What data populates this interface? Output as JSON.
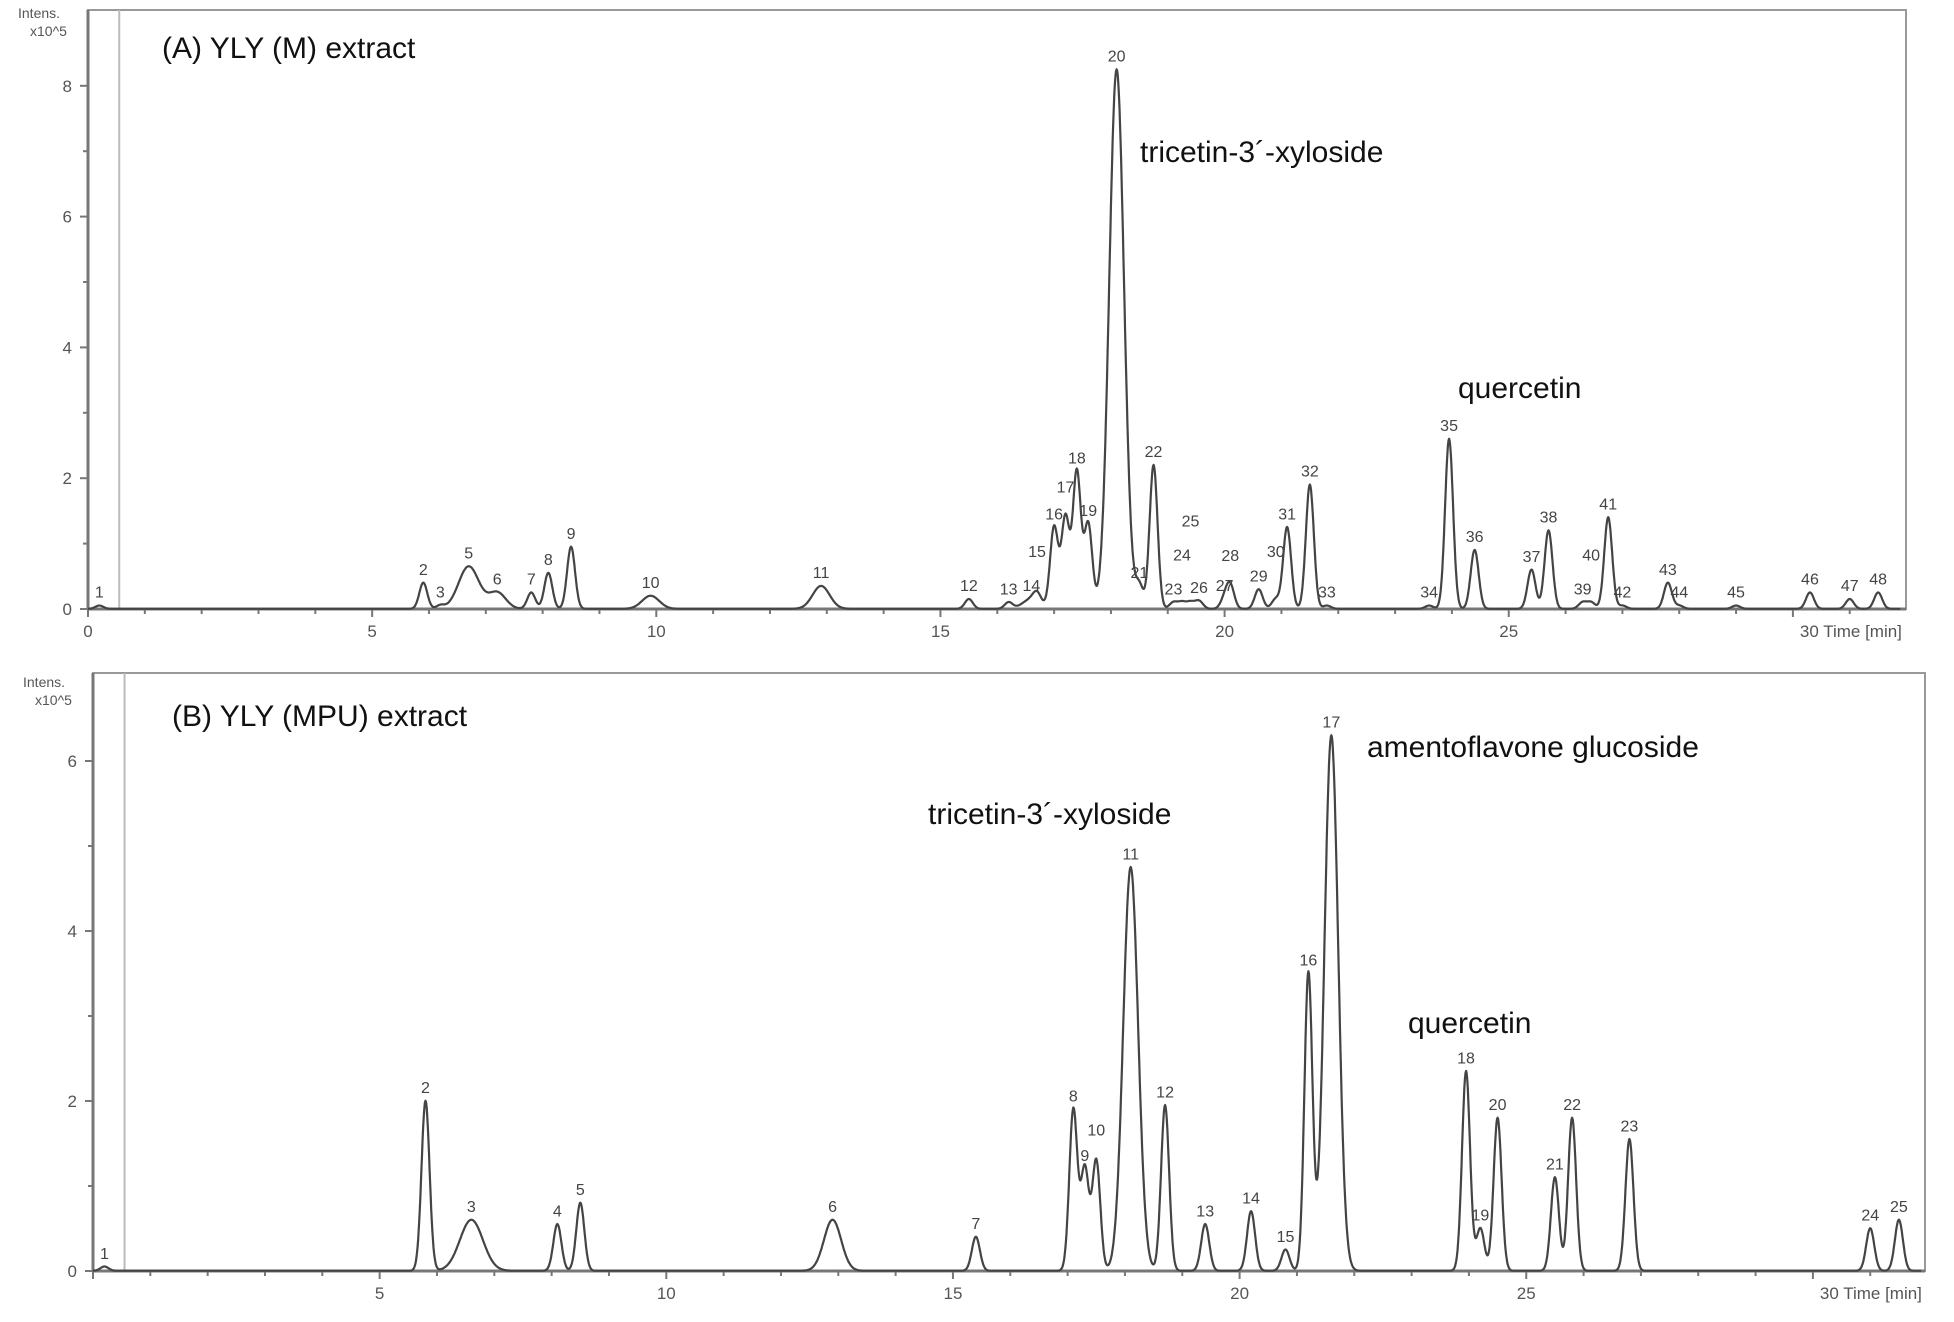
{
  "chart_data": [
    {
      "type": "line",
      "title": "(A) YLY (M) extract",
      "ylabel": "Intens.",
      "yunit": "x10^5",
      "xlabel": "Time [min]",
      "xlim": [
        0,
        32
      ],
      "ylim": [
        0,
        8.7
      ],
      "xticks": [
        0,
        5,
        10,
        15,
        20,
        25,
        30
      ],
      "xtick_labels": [
        "0",
        "5",
        "10",
        "15",
        "20",
        "25",
        "30 Time [min]"
      ],
      "yticks": [
        0,
        2,
        4,
        6,
        8
      ],
      "annotations": [
        {
          "text": "(A) YLY (M) extract",
          "role": "panel-title"
        },
        {
          "text": "tricetin-3´-xyloside",
          "peak": "20"
        },
        {
          "text": "quercetin",
          "peak": "35"
        }
      ],
      "peaks": [
        {
          "label": "1",
          "t": 0.2,
          "h": 0.05
        },
        {
          "label": "2",
          "t": 5.9,
          "h": 0.4
        },
        {
          "label": "3",
          "t": 6.2,
          "h": 0.05
        },
        {
          "label": "5",
          "t": 6.7,
          "h": 0.65,
          "w": 0.18
        },
        {
          "label": "6",
          "t": 7.2,
          "h": 0.25,
          "w": 0.15
        },
        {
          "label": "7",
          "t": 7.8,
          "h": 0.25
        },
        {
          "label": "8",
          "t": 8.1,
          "h": 0.55
        },
        {
          "label": "9",
          "t": 8.5,
          "h": 0.95
        },
        {
          "label": "10",
          "t": 9.9,
          "h": 0.2,
          "w": 0.15
        },
        {
          "label": "11",
          "t": 12.9,
          "h": 0.35,
          "w": 0.15
        },
        {
          "label": "12",
          "t": 15.5,
          "h": 0.15
        },
        {
          "label": "13",
          "t": 16.2,
          "h": 0.1
        },
        {
          "label": "14",
          "t": 16.6,
          "h": 0.15,
          "w": 0.15
        },
        {
          "label": "15",
          "t": 16.7,
          "h": 0.15
        },
        {
          "label": "16",
          "t": 17.0,
          "h": 1.25
        },
        {
          "label": "17",
          "t": 17.2,
          "h": 1.4
        },
        {
          "label": "18",
          "t": 17.4,
          "h": 2.1
        },
        {
          "label": "19",
          "t": 17.6,
          "h": 1.3
        },
        {
          "label": "20",
          "t": 18.1,
          "h": 8.25,
          "w": 0.13
        },
        {
          "label": "21",
          "t": 18.5,
          "h": 0.35
        },
        {
          "label": "22",
          "t": 18.75,
          "h": 2.2
        },
        {
          "label": "23",
          "t": 19.1,
          "h": 0.1
        },
        {
          "label": "24",
          "t": 19.25,
          "h": 0.1
        },
        {
          "label": "25",
          "t": 19.4,
          "h": 0.1
        },
        {
          "label": "26",
          "t": 19.55,
          "h": 0.12
        },
        {
          "label": "27",
          "t": 20.0,
          "h": 0.15
        },
        {
          "label": "28",
          "t": 20.1,
          "h": 0.35
        },
        {
          "label": "29",
          "t": 20.6,
          "h": 0.3
        },
        {
          "label": "30",
          "t": 20.9,
          "h": 0.15
        },
        {
          "label": "31",
          "t": 21.1,
          "h": 1.25
        },
        {
          "label": "32",
          "t": 21.5,
          "h": 1.9
        },
        {
          "label": "33",
          "t": 21.8,
          "h": 0.05
        },
        {
          "label": "34",
          "t": 23.6,
          "h": 0.05
        },
        {
          "label": "35",
          "t": 23.95,
          "h": 2.6
        },
        {
          "label": "36",
          "t": 24.4,
          "h": 0.9
        },
        {
          "label": "37",
          "t": 25.4,
          "h": 0.6
        },
        {
          "label": "38",
          "t": 25.7,
          "h": 1.2
        },
        {
          "label": "39",
          "t": 26.3,
          "h": 0.1
        },
        {
          "label": "40",
          "t": 26.45,
          "h": 0.1
        },
        {
          "label": "41",
          "t": 26.75,
          "h": 1.4
        },
        {
          "label": "42",
          "t": 27.0,
          "h": 0.05
        },
        {
          "label": "43",
          "t": 27.8,
          "h": 0.4
        },
        {
          "label": "44",
          "t": 28.0,
          "h": 0.05
        },
        {
          "label": "45",
          "t": 29.0,
          "h": 0.05
        },
        {
          "label": "46",
          "t": 30.3,
          "h": 0.25
        },
        {
          "label": "47",
          "t": 31.0,
          "h": 0.15
        },
        {
          "label": "48",
          "t": 31.5,
          "h": 0.25
        }
      ]
    },
    {
      "type": "line",
      "title": "(B) YLY (MPU) extract",
      "ylabel": "Intens.",
      "yunit": "x10^5",
      "xlabel": "Time [min]",
      "xlim": [
        0,
        32
      ],
      "ylim": [
        0,
        7.0
      ],
      "xticks": [
        5,
        10,
        15,
        20,
        25,
        30
      ],
      "xtick_labels": [
        "5",
        "10",
        "15",
        "20",
        "25",
        "30 Time [min]"
      ],
      "yticks": [
        0,
        2,
        4,
        6
      ],
      "annotations": [
        {
          "text": "(B) YLY (MPU) extract",
          "role": "panel-title"
        },
        {
          "text": "tricetin-3´-xyloside",
          "peak": "11"
        },
        {
          "text": "amentoflavone glucoside",
          "peak": "17"
        },
        {
          "text": "quercetin",
          "peak": "18"
        }
      ],
      "peaks": [
        {
          "label": "1",
          "t": 0.2,
          "h": 0.05
        },
        {
          "label": "2",
          "t": 5.8,
          "h": 2.0
        },
        {
          "label": "3",
          "t": 6.6,
          "h": 0.6,
          "w": 0.2
        },
        {
          "label": "4",
          "t": 8.1,
          "h": 0.55
        },
        {
          "label": "5",
          "t": 8.5,
          "h": 0.8
        },
        {
          "label": "6",
          "t": 12.9,
          "h": 0.6,
          "w": 0.15
        },
        {
          "label": "7",
          "t": 15.4,
          "h": 0.4
        },
        {
          "label": "8",
          "t": 17.1,
          "h": 1.9
        },
        {
          "label": "9",
          "t": 17.3,
          "h": 1.2
        },
        {
          "label": "10",
          "t": 17.5,
          "h": 1.3
        },
        {
          "label": "11",
          "t": 18.1,
          "h": 4.75,
          "w": 0.13
        },
        {
          "label": "12",
          "t": 18.7,
          "h": 1.95
        },
        {
          "label": "13",
          "t": 19.4,
          "h": 0.55
        },
        {
          "label": "14",
          "t": 20.2,
          "h": 0.7
        },
        {
          "label": "15",
          "t": 20.8,
          "h": 0.25
        },
        {
          "label": "16",
          "t": 21.2,
          "h": 3.5
        },
        {
          "label": "17",
          "t": 21.6,
          "h": 6.3,
          "w": 0.12
        },
        {
          "label": "18",
          "t": 23.95,
          "h": 2.35
        },
        {
          "label": "19",
          "t": 24.2,
          "h": 0.5
        },
        {
          "label": "20",
          "t": 24.5,
          "h": 1.8
        },
        {
          "label": "21",
          "t": 25.5,
          "h": 1.1
        },
        {
          "label": "22",
          "t": 25.8,
          "h": 1.8
        },
        {
          "label": "23",
          "t": 26.8,
          "h": 1.55
        },
        {
          "label": "24",
          "t": 31.0,
          "h": 0.5
        },
        {
          "label": "25",
          "t": 31.5,
          "h": 0.6
        }
      ]
    }
  ],
  "colors": {
    "trace": "#444444",
    "axis": "#777777",
    "frame": "#999999"
  }
}
